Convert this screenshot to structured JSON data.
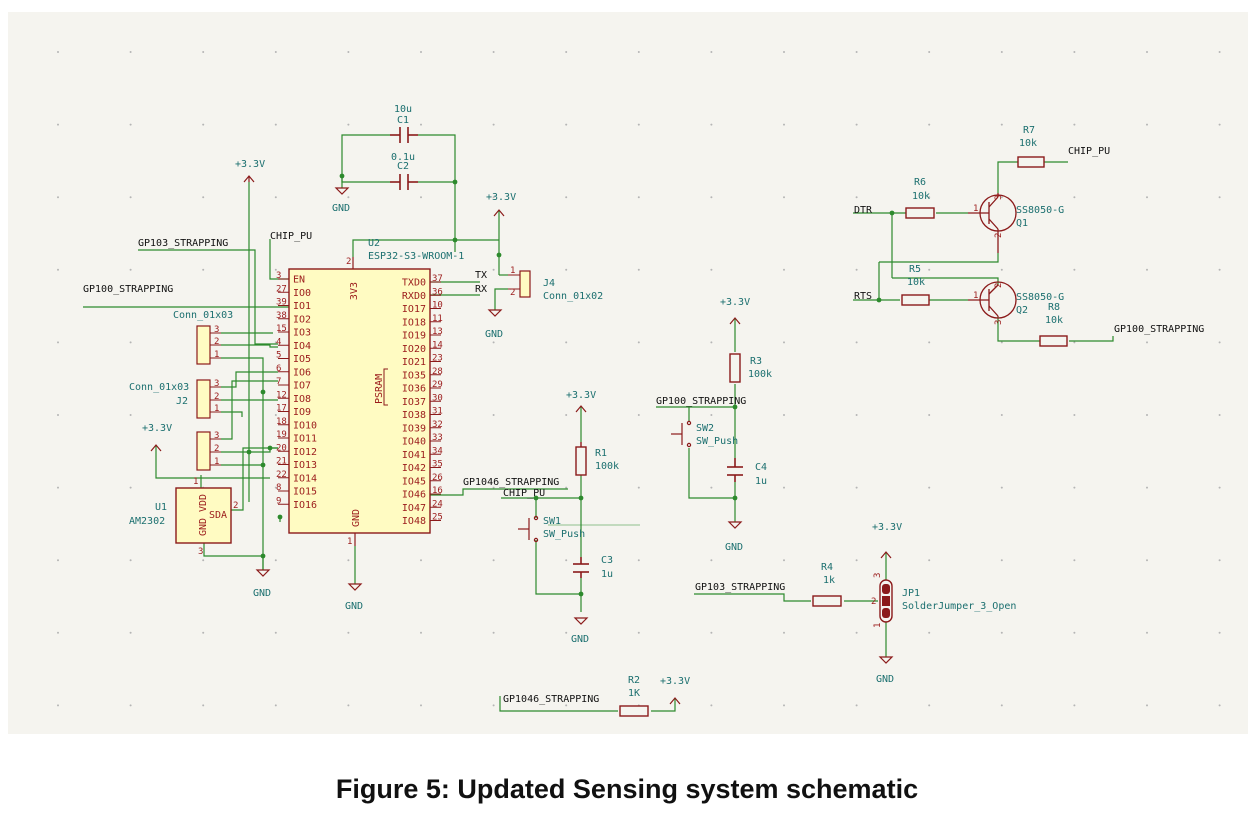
{
  "caption": "Figure 5: Updated Sensing system schematic",
  "colors": {
    "wire": "#2d8a2d",
    "component": "#8b1a1a",
    "body_fill": "#fffbc2",
    "teal_text": "#1b6f6f",
    "background": "#f5f4ef"
  },
  "u2": {
    "ref": "U2",
    "value": "ESP32-S3-WROOM-1",
    "psram": "PSRAM",
    "left_pins": [
      [
        "3",
        "EN"
      ],
      [
        "27",
        "IO0"
      ],
      [
        "39",
        "IO1"
      ],
      [
        "38",
        "IO2"
      ],
      [
        "15",
        "IO3"
      ],
      [
        "4",
        "IO4"
      ],
      [
        "5",
        "IO5"
      ],
      [
        "6",
        "IO6"
      ],
      [
        "7",
        "IO7"
      ],
      [
        "12",
        "IO8"
      ],
      [
        "17",
        "IO9"
      ],
      [
        "18",
        "IO10"
      ],
      [
        "19",
        "IO11"
      ],
      [
        "20",
        "IO12"
      ],
      [
        "21",
        "IO13"
      ],
      [
        "22",
        "IO14"
      ],
      [
        "8",
        "IO15"
      ],
      [
        "9",
        "IO16"
      ]
    ],
    "right_pins": [
      [
        "37",
        "TXD0"
      ],
      [
        "36",
        "RXD0"
      ],
      [
        "10",
        "IO17"
      ],
      [
        "11",
        "IO18"
      ],
      [
        "13",
        "IO19"
      ],
      [
        "14",
        "IO20"
      ],
      [
        "23",
        "IO21"
      ],
      [
        "28",
        "IO35"
      ],
      [
        "29",
        "IO36"
      ],
      [
        "30",
        "IO37"
      ],
      [
        "31",
        "IO38"
      ],
      [
        "32",
        "IO39"
      ],
      [
        "33",
        "IO40"
      ],
      [
        "34",
        "IO41"
      ],
      [
        "35",
        "IO42"
      ],
      [
        "26",
        "IO45"
      ],
      [
        "16",
        "IO46"
      ],
      [
        "24",
        "IO47"
      ],
      [
        "25",
        "IO48"
      ]
    ],
    "top_pin": [
      "2",
      "3V3"
    ],
    "bottom_pin": [
      "1",
      "GND"
    ]
  },
  "nets": {
    "v33": "+3.3V",
    "gnd": "GND",
    "chip_pu": "CHIP_PU",
    "gpio3": "GP103_STRAPPING",
    "gpio0": "GP100_STRAPPING",
    "gpio46": "GP1046_STRAPPING",
    "tx": "TX",
    "rx": "RX",
    "dtr": "DTR",
    "rts": "RTS"
  },
  "caps": {
    "c1": {
      "ref": "C1",
      "value": "10u"
    },
    "c2": {
      "ref": "C2",
      "value": "0.1u"
    },
    "c3": {
      "ref": "C3",
      "value": "1u"
    },
    "c4": {
      "ref": "C4",
      "value": "1u"
    }
  },
  "resistors": {
    "r1": {
      "ref": "R1",
      "value": "100k"
    },
    "r2": {
      "ref": "R2",
      "value": "1K"
    },
    "r3": {
      "ref": "R3",
      "value": "100k"
    },
    "r4": {
      "ref": "R4",
      "value": "1k"
    },
    "r5": {
      "ref": "R5",
      "value": "10k"
    },
    "r6": {
      "ref": "R6",
      "value": "10k"
    },
    "r7": {
      "ref": "R7",
      "value": "10k"
    },
    "r8": {
      "ref": "R8",
      "value": "10k"
    }
  },
  "switches": {
    "sw1": {
      "ref": "SW1",
      "value": "SW_Push"
    },
    "sw2": {
      "ref": "SW2",
      "value": "SW_Push"
    }
  },
  "transistors": {
    "q1": {
      "ref": "Q1",
      "value": "SS8050-G"
    },
    "q2": {
      "ref": "Q2",
      "value": "SS8050-G"
    }
  },
  "connectors": {
    "j4": {
      "ref": "J4",
      "value": "Conn_01x02",
      "pins": [
        "1",
        "2"
      ]
    },
    "top3": {
      "value": "Conn_01x03",
      "pins": [
        "3",
        "2",
        "1"
      ]
    },
    "j2": {
      "ref": "J2",
      "value": "Conn_01x03",
      "pins": [
        "3",
        "2",
        "1"
      ]
    },
    "bot3": {
      "pins": [
        "3",
        "2",
        "1"
      ]
    }
  },
  "u1": {
    "ref": "U1",
    "value": "AM2302",
    "vdd": "VDD",
    "gnd": "GND",
    "sda": "SDA",
    "pin_vdd": "1",
    "pin_sda": "2",
    "pin_gnd": "3"
  },
  "jp1": {
    "ref": "JP1",
    "value": "SolderJumper_3_Open",
    "pins": [
      "3",
      "2",
      "1"
    ]
  }
}
